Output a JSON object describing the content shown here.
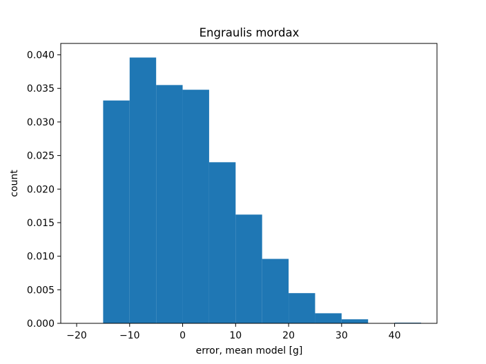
{
  "chart_data": {
    "type": "bar",
    "histogram": true,
    "title": "Engraulis mordax",
    "xlabel": "error, mean model [g]",
    "ylabel": "count",
    "xlim": [
      -23,
      48
    ],
    "ylim": [
      0,
      0.0417
    ],
    "bar_color": "#1f77b4",
    "bins": [
      {
        "x0": -15,
        "x1": -10,
        "value": 0.0332
      },
      {
        "x0": -10,
        "x1": -5,
        "value": 0.0396
      },
      {
        "x0": -5,
        "x1": 0,
        "value": 0.0355
      },
      {
        "x0": 0,
        "x1": 5,
        "value": 0.0348
      },
      {
        "x0": 5,
        "x1": 10,
        "value": 0.024
      },
      {
        "x0": 10,
        "x1": 15,
        "value": 0.0162
      },
      {
        "x0": 15,
        "x1": 20,
        "value": 0.0096
      },
      {
        "x0": 20,
        "x1": 25,
        "value": 0.0045
      },
      {
        "x0": 25,
        "x1": 30,
        "value": 0.0015
      },
      {
        "x0": 30,
        "x1": 35,
        "value": 0.0006
      },
      {
        "x0": 35,
        "x1": 40,
        "value": 0.0
      },
      {
        "x0": 40,
        "x1": 45,
        "value": 0.0001
      }
    ],
    "xticks": [
      {
        "value": -20,
        "label": "−20"
      },
      {
        "value": -10,
        "label": "−10"
      },
      {
        "value": 0,
        "label": "0"
      },
      {
        "value": 10,
        "label": "10"
      },
      {
        "value": 20,
        "label": "20"
      },
      {
        "value": 30,
        "label": "30"
      },
      {
        "value": 40,
        "label": "40"
      }
    ],
    "yticks": [
      {
        "value": 0.0,
        "label": "0.000"
      },
      {
        "value": 0.005,
        "label": "0.005"
      },
      {
        "value": 0.01,
        "label": "0.010"
      },
      {
        "value": 0.015,
        "label": "0.015"
      },
      {
        "value": 0.02,
        "label": "0.020"
      },
      {
        "value": 0.025,
        "label": "0.025"
      },
      {
        "value": 0.03,
        "label": "0.030"
      },
      {
        "value": 0.035,
        "label": "0.035"
      },
      {
        "value": 0.04,
        "label": "0.040"
      }
    ]
  }
}
